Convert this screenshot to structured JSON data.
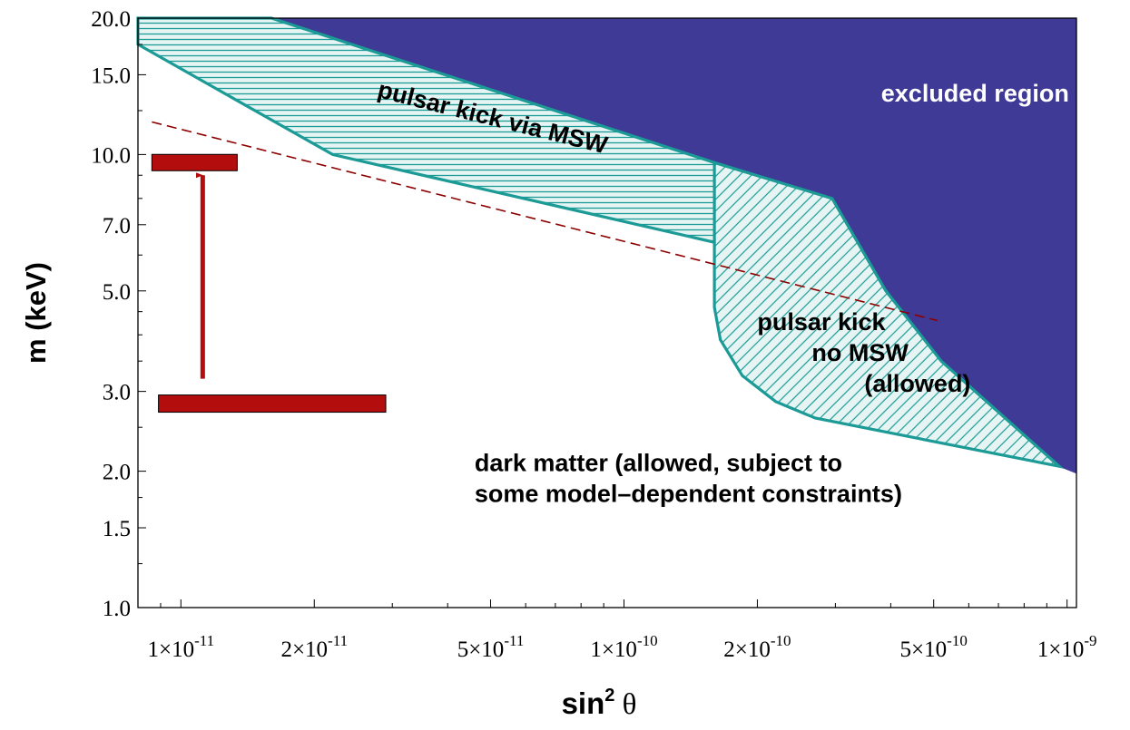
{
  "chart_data": {
    "type": "area",
    "xlabel": "sin² θ",
    "ylabel": "m (keV)",
    "x_scale": "log",
    "y_scale": "log",
    "xlim": [
      8e-12,
      1.05e-09
    ],
    "ylim": [
      1.0,
      20.0
    ],
    "x_ticks": [
      {
        "value": 1e-11,
        "mantissa": "1",
        "exponent": "-11"
      },
      {
        "value": 2e-11,
        "mantissa": "2",
        "exponent": "-11"
      },
      {
        "value": 5e-11,
        "mantissa": "5",
        "exponent": "-11"
      },
      {
        "value": 1e-10,
        "mantissa": "1",
        "exponent": "-10"
      },
      {
        "value": 2e-10,
        "mantissa": "2",
        "exponent": "-10"
      },
      {
        "value": 5e-10,
        "mantissa": "5",
        "exponent": "-10"
      },
      {
        "value": 1e-09,
        "mantissa": "1",
        "exponent": "-9"
      }
    ],
    "y_ticks": [
      {
        "value": 1.0,
        "label": "1.0"
      },
      {
        "value": 1.5,
        "label": "1.5"
      },
      {
        "value": 2.0,
        "label": "2.0"
      },
      {
        "value": 3.0,
        "label": "3.0"
      },
      {
        "value": 5.0,
        "label": "5.0"
      },
      {
        "value": 7.0,
        "label": "7.0"
      },
      {
        "value": 10.0,
        "label": "10.0"
      },
      {
        "value": 15.0,
        "label": "15.0"
      },
      {
        "value": 20.0,
        "label": "20.0"
      }
    ],
    "regions": [
      {
        "name": "excluded region",
        "fill": "#3f3a96",
        "points": [
          [
            1.6e-11,
            20.0
          ],
          [
            1.05e-09,
            20.0
          ],
          [
            1.05e-09,
            1.98
          ],
          [
            9.6e-10,
            2.05
          ],
          [
            5.2e-10,
            3.5
          ],
          [
            3.9e-10,
            5.0
          ],
          [
            2.95e-10,
            8.0
          ],
          [
            1.6e-10,
            9.6
          ],
          [
            1.6e-11,
            20.0
          ]
        ]
      },
      {
        "name": "pulsar kick via MSW",
        "fill": "#e6f5f3",
        "hatch": "horizontal",
        "points": [
          [
            8e-12,
            20.0
          ],
          [
            1.6e-11,
            20.0
          ],
          [
            1.6e-10,
            9.6
          ],
          [
            1.6e-10,
            6.4
          ],
          [
            2.2e-11,
            10.0
          ],
          [
            8e-12,
            17.5
          ],
          [
            8e-12,
            20.0
          ]
        ]
      },
      {
        "name": "pulsar kick no MSW (allowed)",
        "fill": "#e6f5f3",
        "hatch": "diagonal",
        "points": [
          [
            1.6e-10,
            9.6
          ],
          [
            2.95e-10,
            8.0
          ],
          [
            3.9e-10,
            5.0
          ],
          [
            5.2e-10,
            3.5
          ],
          [
            9.6e-10,
            2.05
          ],
          [
            2.7e-10,
            2.62
          ],
          [
            2.2e-10,
            2.85
          ],
          [
            1.85e-10,
            3.25
          ],
          [
            1.65e-10,
            3.9
          ],
          [
            1.6e-10,
            4.6
          ],
          [
            1.6e-10,
            9.6
          ]
        ]
      }
    ],
    "dashed_line": {
      "points": [
        [
          8.6e-12,
          11.8
        ],
        [
          5.1e-10,
          4.3
        ]
      ],
      "color": "#8b0000"
    },
    "bars": [
      {
        "x0": 8.6e-12,
        "x1": 1.34e-11,
        "y": 9.6
      },
      {
        "x0": 8.9e-12,
        "x1": 2.9e-11,
        "y": 2.82
      }
    ],
    "arrow": {
      "x": 1.12e-11,
      "y_from": 3.2,
      "y_to": 9.0
    },
    "colors": {
      "outline": "#1b9a96",
      "hatch": "#1b9a96",
      "bar_fill": "#b40d0d",
      "arrow": "#b40d0d",
      "excluded": "#3f3a96",
      "excluded_text": "#ffffff"
    },
    "annotations": [
      {
        "lines": [
          "excluded region"
        ],
        "x": 6.2e-10,
        "y": 13.1,
        "color": "#ffffff",
        "anchor": "middle",
        "rotate": 0
      },
      {
        "lines": [
          "pulsar kick via MSW"
        ],
        "x": 5e-11,
        "y": 11.6,
        "color": "#000000",
        "anchor": "middle",
        "rotate": 14
      },
      {
        "lines": [
          "pulsar kick",
          "no MSW",
          "(allowed)"
        ],
        "x": 2e-10,
        "y": 4.1,
        "color": "#000000",
        "anchor": "start",
        "indents": [
          0,
          60,
          118
        ],
        "rotate": 0
      },
      {
        "lines": [
          "dark matter (allowed, subject to",
          "some model–dependent constraints)"
        ],
        "x": 4.6e-11,
        "y": 2.0,
        "color": "#000000",
        "anchor": "start",
        "rotate": 0
      }
    ]
  }
}
